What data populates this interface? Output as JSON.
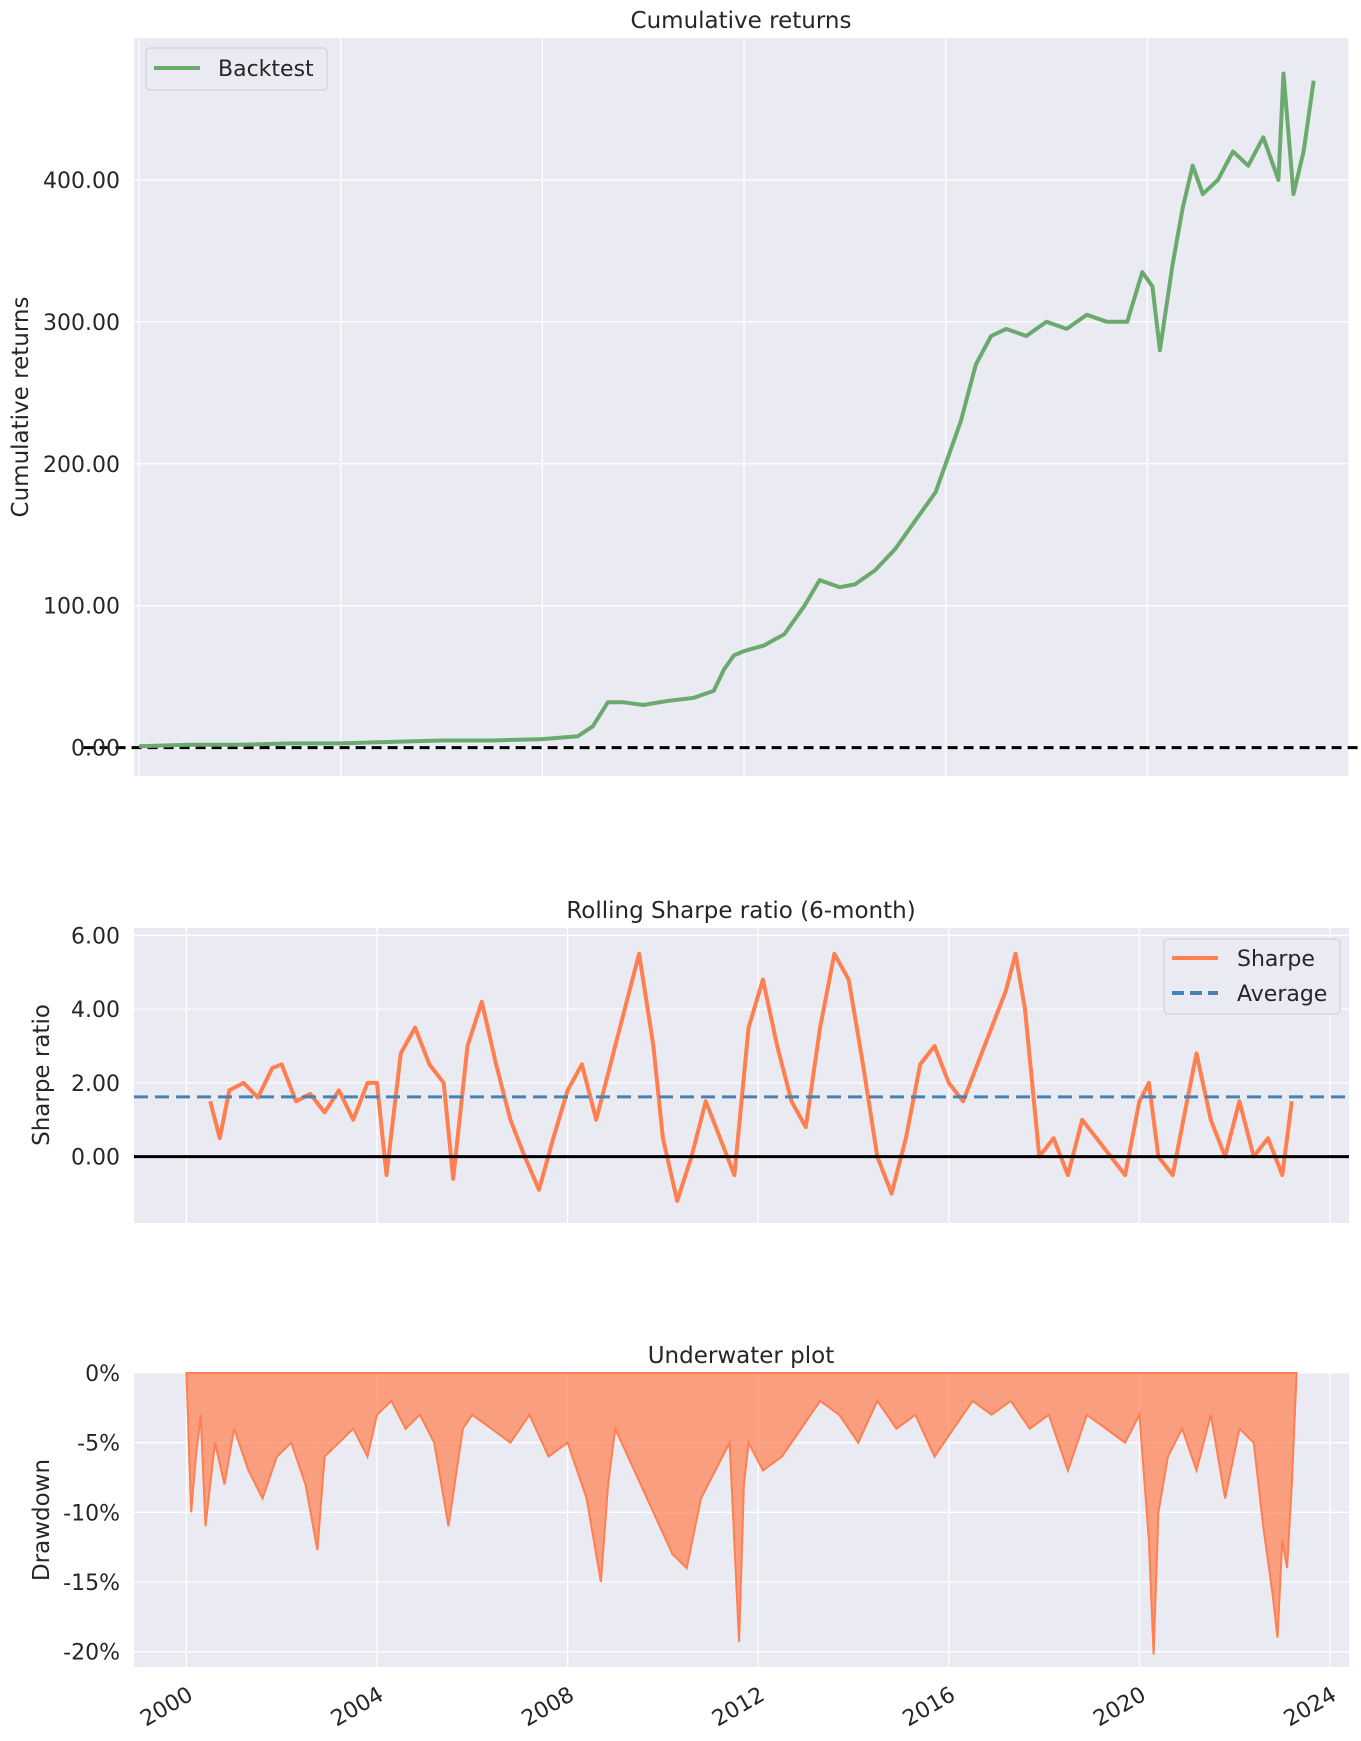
{
  "chart_data": [
    {
      "type": "line",
      "title": "Cumulative returns",
      "xlabel": "",
      "ylabel": "Cumulative returns",
      "xlim": [
        1999.9,
        2024
      ],
      "ylim": [
        -20,
        500
      ],
      "xticks": [
        2000,
        2004,
        2008,
        2012,
        2016,
        2020,
        2024
      ],
      "yticks": [
        0,
        100,
        200,
        300,
        400
      ],
      "ytick_labels": [
        "0.00",
        "100.00",
        "200.00",
        "300.00",
        "400.00"
      ],
      "grid": true,
      "legend": {
        "placement": "top-left",
        "entries": [
          "Backtest"
        ]
      },
      "series": [
        {
          "name": "Backtest",
          "color": "#6aaa6c",
          "x": [
            2000.0,
            2001.0,
            2002.0,
            2003.0,
            2004.0,
            2005.0,
            2006.0,
            2007.0,
            2008.0,
            2008.7,
            2009.0,
            2009.3,
            2009.6,
            2010.0,
            2010.5,
            2011.0,
            2011.4,
            2011.6,
            2011.8,
            2012.0,
            2012.4,
            2012.8,
            2013.2,
            2013.5,
            2013.9,
            2014.2,
            2014.6,
            2015.0,
            2015.4,
            2015.8,
            2016.0,
            2016.3,
            2016.6,
            2016.9,
            2017.2,
            2017.6,
            2018.0,
            2018.4,
            2018.8,
            2019.2,
            2019.6,
            2019.9,
            2020.1,
            2020.25,
            2020.5,
            2020.7,
            2020.9,
            2021.1,
            2021.4,
            2021.7,
            2022.0,
            2022.3,
            2022.6,
            2022.7,
            2022.9,
            2023.1,
            2023.3
          ],
          "values": [
            1,
            2,
            2,
            3,
            3,
            4,
            5,
            5,
            6,
            8,
            15,
            32,
            32,
            30,
            33,
            35,
            40,
            55,
            65,
            68,
            72,
            80,
            100,
            118,
            113,
            115,
            125,
            140,
            160,
            180,
            200,
            230,
            270,
            290,
            295,
            290,
            300,
            295,
            305,
            300,
            300,
            335,
            325,
            280,
            340,
            380,
            410,
            390,
            400,
            420,
            410,
            430,
            400,
            475,
            390,
            420,
            470
          ]
        },
        {
          "name": "",
          "style": "dashed",
          "color": "#000000",
          "x": [
            1998.9,
            2024.4
          ],
          "values": [
            0,
            0
          ]
        }
      ]
    },
    {
      "type": "line",
      "title": "Rolling Sharpe ratio (6-month)",
      "xlabel": "",
      "ylabel": "Sharpe ratio",
      "xlim": [
        1998.9,
        2024.4
      ],
      "ylim": [
        -1.8,
        6.2
      ],
      "xticks": [
        2000,
        2004,
        2008,
        2012,
        2016,
        2020,
        2024
      ],
      "yticks": [
        0,
        2,
        4,
        6
      ],
      "ytick_labels": [
        "0.00",
        "2.00",
        "4.00",
        "6.00"
      ],
      "grid": true,
      "legend": {
        "placement": "top-right",
        "entries": [
          "Sharpe",
          "Average"
        ]
      },
      "series": [
        {
          "name": "Sharpe",
          "color": "#ff7f50",
          "x": [
            2000.5,
            2000.7,
            2000.9,
            2001.2,
            2001.5,
            2001.8,
            2002.0,
            2002.3,
            2002.6,
            2002.9,
            2003.2,
            2003.5,
            2003.8,
            2004.0,
            2004.2,
            2004.5,
            2004.8,
            2005.1,
            2005.4,
            2005.6,
            2005.9,
            2006.2,
            2006.5,
            2006.8,
            2007.1,
            2007.4,
            2007.7,
            2008.0,
            2008.3,
            2008.6,
            2009.0,
            2009.3,
            2009.5,
            2009.8,
            2010.0,
            2010.3,
            2010.6,
            2010.9,
            2011.2,
            2011.5,
            2011.8,
            2012.1,
            2012.4,
            2012.7,
            2013.0,
            2013.3,
            2013.6,
            2013.9,
            2014.2,
            2014.5,
            2014.8,
            2015.1,
            2015.4,
            2015.7,
            2016.0,
            2016.3,
            2016.6,
            2016.9,
            2017.2,
            2017.4,
            2017.6,
            2017.9,
            2018.2,
            2018.5,
            2018.8,
            2019.1,
            2019.4,
            2019.7,
            2020.0,
            2020.2,
            2020.4,
            2020.7,
            2021.0,
            2021.2,
            2021.5,
            2021.8,
            2022.1,
            2022.4,
            2022.7,
            2023.0,
            2023.2
          ],
          "values": [
            1.5,
            0.5,
            1.8,
            2.0,
            1.6,
            2.4,
            2.5,
            1.5,
            1.7,
            1.2,
            1.8,
            1.0,
            2.0,
            2.0,
            -0.5,
            2.8,
            3.5,
            2.5,
            2.0,
            -0.6,
            3.0,
            4.2,
            2.5,
            1.0,
            0.0,
            -0.9,
            0.5,
            1.8,
            2.5,
            1.0,
            3.0,
            4.5,
            5.5,
            3.0,
            0.5,
            -1.2,
            0.0,
            1.5,
            0.5,
            -0.5,
            3.5,
            4.8,
            3.0,
            1.5,
            0.8,
            3.5,
            5.5,
            4.8,
            2.5,
            0.0,
            -1.0,
            0.5,
            2.5,
            3.0,
            2.0,
            1.5,
            2.5,
            3.5,
            4.5,
            5.5,
            4.0,
            0.0,
            0.5,
            -0.5,
            1.0,
            0.5,
            0.0,
            -0.5,
            1.5,
            2.0,
            0.0,
            -0.5,
            1.5,
            2.8,
            1.0,
            0.0,
            1.5,
            0.0,
            0.5,
            -0.5,
            1.5
          ]
        },
        {
          "name": "Average",
          "style": "dashed",
          "color": "#4682b4",
          "x": [
            1998.9,
            2024.4
          ],
          "values": [
            1.62,
            1.62
          ]
        },
        {
          "name": "",
          "style": "solid",
          "color": "#000000",
          "x": [
            1998.9,
            2024.4
          ],
          "values": [
            0,
            0
          ]
        }
      ]
    },
    {
      "type": "area",
      "title": "Underwater plot",
      "xlabel": "",
      "ylabel": "Drawdown",
      "xlim": [
        1998.9,
        2024.4
      ],
      "ylim": [
        -21.1,
        0
      ],
      "xticks": [
        2000,
        2004,
        2008,
        2012,
        2016,
        2020,
        2024
      ],
      "xtick_labels": [
        "2000",
        "2004",
        "2008",
        "2012",
        "2016",
        "2020",
        "2024"
      ],
      "yticks": [
        0,
        -5,
        -10,
        -15,
        -20
      ],
      "ytick_labels": [
        "0%",
        "-5%",
        "-10%",
        "-15%",
        "-20%"
      ],
      "grid": true,
      "series": [
        {
          "name": "",
          "color": "#ff7f50",
          "x": [
            2000.0,
            2000.1,
            2000.2,
            2000.3,
            2000.4,
            2000.6,
            2000.8,
            2001.0,
            2001.3,
            2001.6,
            2001.9,
            2002.2,
            2002.5,
            2002.75,
            2002.9,
            2003.2,
            2003.5,
            2003.8,
            2004.0,
            2004.3,
            2004.6,
            2004.9,
            2005.2,
            2005.5,
            2005.8,
            2006.0,
            2006.4,
            2006.8,
            2007.2,
            2007.6,
            2008.0,
            2008.4,
            2008.7,
            2008.85,
            2009.0,
            2009.4,
            2009.8,
            2010.2,
            2010.5,
            2010.8,
            2011.1,
            2011.4,
            2011.6,
            2011.7,
            2011.8,
            2012.1,
            2012.5,
            2012.9,
            2013.3,
            2013.7,
            2014.1,
            2014.5,
            2014.9,
            2015.3,
            2015.7,
            2016.1,
            2016.5,
            2016.9,
            2017.3,
            2017.7,
            2018.1,
            2018.5,
            2018.9,
            2019.3,
            2019.7,
            2020.0,
            2020.2,
            2020.3,
            2020.4,
            2020.6,
            2020.9,
            2021.2,
            2021.5,
            2021.8,
            2022.1,
            2022.4,
            2022.6,
            2022.8,
            2022.9,
            2023.0,
            2023.1,
            2023.2,
            2023.3
          ],
          "values": [
            0,
            -10,
            -6,
            -3,
            -11,
            -5,
            -8,
            -4,
            -7,
            -9,
            -6,
            -5,
            -8,
            -12.7,
            -6,
            -5,
            -4,
            -6,
            -3,
            -2,
            -4,
            -3,
            -5,
            -11,
            -4,
            -3,
            -4,
            -5,
            -3,
            -6,
            -5,
            -9,
            -15,
            -8,
            -4,
            -7,
            -10,
            -13,
            -14,
            -9,
            -7,
            -5,
            -19.3,
            -8,
            -5,
            -7,
            -6,
            -4,
            -2,
            -3,
            -5,
            -2,
            -4,
            -3,
            -6,
            -4,
            -2,
            -3,
            -2,
            -4,
            -3,
            -7,
            -3,
            -4,
            -5,
            -3,
            -12,
            -20.2,
            -10,
            -6,
            -4,
            -7,
            -3,
            -9,
            -4,
            -5,
            -11,
            -16,
            -19,
            -12,
            -14,
            -8,
            0
          ]
        }
      ]
    }
  ]
}
